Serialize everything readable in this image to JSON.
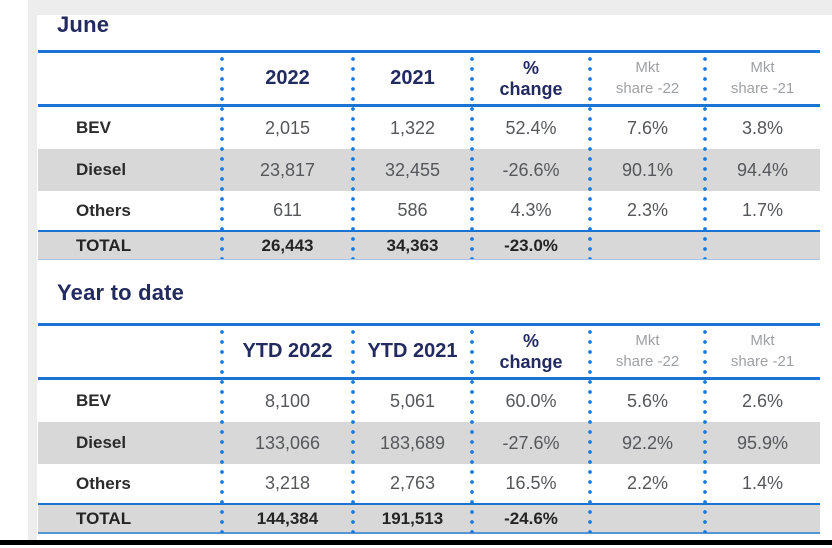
{
  "colors": {
    "accent_blue": "#1b73d4",
    "dot_blue": "#1778e0",
    "navy_text": "#232a60",
    "muted_header_gray": "#9ea1a4",
    "value_gray": "#55575b",
    "stripe_gray": "#d8d8d8",
    "bottom_rule_black": "#000000"
  },
  "june": {
    "title": "June",
    "header": {
      "year_a": "2022",
      "year_b": "2021",
      "pct_l1": "%",
      "pct_l2": "change",
      "mkt22_l1": "Mkt",
      "mkt22_l2": "share -22",
      "mkt21_l1": "Mkt",
      "mkt21_l2": "share -21"
    },
    "rows": [
      {
        "label": "BEV",
        "year_a": "2,015",
        "year_b": "1,322",
        "pct": "52.4%",
        "mkt22": "7.6%",
        "mkt21": "3.8%"
      },
      {
        "label": "Diesel",
        "year_a": "23,817",
        "year_b": "32,455",
        "pct": "-26.6%",
        "mkt22": "90.1%",
        "mkt21": "94.4%"
      },
      {
        "label": "Others",
        "year_a": "611",
        "year_b": "586",
        "pct": "4.3%",
        "mkt22": "2.3%",
        "mkt21": "1.7%"
      }
    ],
    "total": {
      "label": "TOTAL",
      "year_a": "26,443",
      "year_b": "34,363",
      "pct": "-23.0%",
      "mkt22": "",
      "mkt21": ""
    }
  },
  "ytd": {
    "title": "Year to date",
    "header": {
      "year_a": "YTD 2022",
      "year_b": "YTD 2021",
      "pct_l1": "%",
      "pct_l2": "change",
      "mkt22_l1": "Mkt",
      "mkt22_l2": "share -22",
      "mkt21_l1": "Mkt",
      "mkt21_l2": "share -21"
    },
    "rows": [
      {
        "label": "BEV",
        "year_a": "8,100",
        "year_b": "5,061",
        "pct": "60.0%",
        "mkt22": "5.6%",
        "mkt21": "2.6%"
      },
      {
        "label": "Diesel",
        "year_a": "133,066",
        "year_b": "183,689",
        "pct": "-27.6%",
        "mkt22": "92.2%",
        "mkt21": "95.9%"
      },
      {
        "label": "Others",
        "year_a": "3,218",
        "year_b": "2,763",
        "pct": "16.5%",
        "mkt22": "2.2%",
        "mkt21": "1.4%"
      }
    ],
    "total": {
      "label": "TOTAL",
      "year_a": "144,384",
      "year_b": "191,513",
      "pct": "-24.6%",
      "mkt22": "",
      "mkt21": ""
    }
  }
}
